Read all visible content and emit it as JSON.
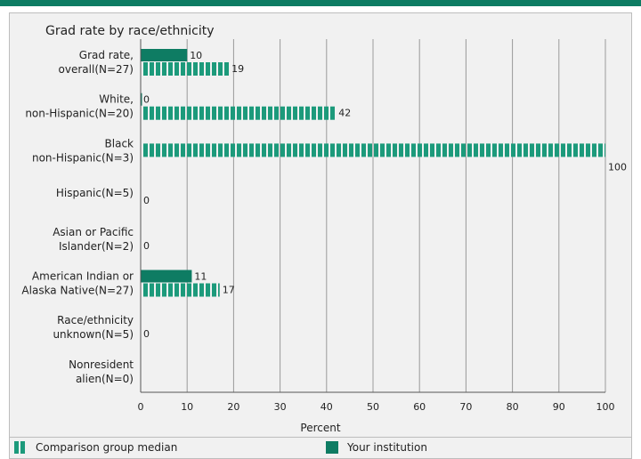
{
  "chart_data": {
    "type": "bar",
    "orientation": "horizontal",
    "title": "Grad rate by race/ethnicity",
    "xlabel": "Percent",
    "xlim": [
      0,
      100
    ],
    "xticks": [
      "0",
      "10",
      "20",
      "30",
      "40",
      "50",
      "60",
      "70",
      "80",
      "90",
      "100"
    ],
    "categories": [
      [
        "Grad rate,",
        "overall(N=27)"
      ],
      [
        "White,",
        "non-Hispanic(N=20)"
      ],
      [
        "Black",
        "non-Hispanic(N=3)"
      ],
      [
        "Hispanic(N=5)"
      ],
      [
        "Asian or Pacific",
        "Islander(N=2)"
      ],
      [
        "American Indian or",
        "Alaska Native(N=27)"
      ],
      [
        "Race/ethnicity",
        "unknown(N=5)"
      ],
      [
        "Nonresident",
        "alien(N=0)"
      ]
    ],
    "series": [
      {
        "name": "Your institution",
        "values": [
          10,
          0,
          null,
          null,
          null,
          11,
          null,
          null
        ],
        "color": "#0e7c63"
      },
      {
        "name": "Comparison group median",
        "values": [
          19,
          42,
          100,
          0,
          0,
          17,
          0,
          null
        ],
        "color": "#1c9a7b"
      }
    ],
    "grid": true,
    "legend_position": "bottom"
  },
  "legend": {
    "comparison_label": "Comparison group median",
    "institution_label": "Your institution"
  }
}
